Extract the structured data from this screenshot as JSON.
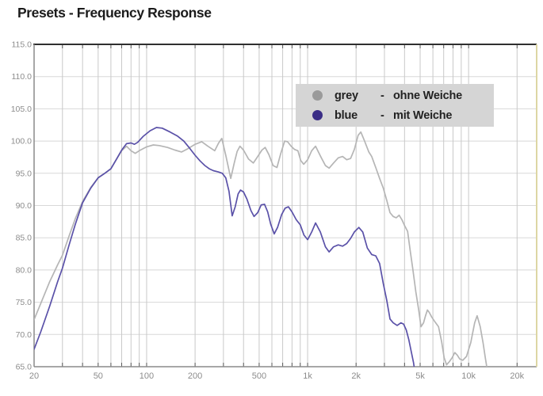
{
  "page": {
    "title": "Presets - Frequency Response"
  },
  "chart_data": {
    "type": "line",
    "title": "Presets - Frequency Response",
    "x_axis": {
      "scale": "log",
      "unit": "Hz",
      "range": [
        20,
        26800
      ],
      "labeled_ticks": [
        {
          "label": "20",
          "value": 20
        },
        {
          "label": "50",
          "value": 50
        },
        {
          "label": "100",
          "value": 100
        },
        {
          "label": "200",
          "value": 200
        },
        {
          "label": "500",
          "value": 500
        },
        {
          "label": "1k",
          "value": 1000
        },
        {
          "label": "2k",
          "value": 2000
        },
        {
          "label": "5k",
          "value": 5000
        },
        {
          "label": "10k",
          "value": 10000
        },
        {
          "label": "20k",
          "value": 20000
        }
      ],
      "minor_gridlines": [
        30,
        40,
        50,
        60,
        70,
        80,
        90,
        100,
        200,
        300,
        400,
        500,
        600,
        700,
        800,
        900,
        1000,
        2000,
        3000,
        4000,
        5000,
        6000,
        7000,
        8000,
        9000,
        10000,
        20000
      ]
    },
    "y_axis": {
      "unit": "dB",
      "range": [
        65,
        115
      ],
      "tick_step": 5,
      "ticks": [
        {
          "label": "115.0",
          "value": 115
        },
        {
          "label": "110.0",
          "value": 110
        },
        {
          "label": "105.0",
          "value": 105
        },
        {
          "label": "100.0",
          "value": 100
        },
        {
          "label": "95.0",
          "value": 95
        },
        {
          "label": "90.0",
          "value": 90
        },
        {
          "label": "85.0",
          "value": 85
        },
        {
          "label": "80.0",
          "value": 80
        },
        {
          "label": "75.0",
          "value": 75
        },
        {
          "label": "70.0",
          "value": 70
        },
        {
          "label": "65.0",
          "value": 65
        }
      ]
    },
    "grid": true,
    "legend": {
      "position": "top-right-inside",
      "background": "#d5d5d5",
      "entries": [
        {
          "color_name": "grey",
          "separator": "-",
          "description": "ohne Weiche",
          "color": "#9a9a9a"
        },
        {
          "color_name": "blue",
          "separator": "-",
          "description": "mit Weiche",
          "color": "#3a2d86"
        }
      ]
    },
    "series": [
      {
        "name": "ohne Weiche",
        "color_name": "grey",
        "color": "#b5b5b5",
        "points": [
          [
            20,
            72.3
          ],
          [
            22,
            74.8
          ],
          [
            25,
            78.2
          ],
          [
            28,
            80.8
          ],
          [
            30,
            82.3
          ],
          [
            33,
            85.3
          ],
          [
            36,
            87.9
          ],
          [
            40,
            90.6
          ],
          [
            45,
            92.8
          ],
          [
            50,
            94.3
          ],
          [
            55,
            95.0
          ],
          [
            60,
            95.7
          ],
          [
            65,
            97.2
          ],
          [
            70,
            98.5
          ],
          [
            75,
            99.2
          ],
          [
            80,
            98.5
          ],
          [
            85,
            98.1
          ],
          [
            90,
            98.5
          ],
          [
            100,
            99.1
          ],
          [
            110,
            99.4
          ],
          [
            120,
            99.3
          ],
          [
            135,
            99.0
          ],
          [
            150,
            98.6
          ],
          [
            165,
            98.3
          ],
          [
            180,
            98.8
          ],
          [
            200,
            99.5
          ],
          [
            220,
            99.9
          ],
          [
            240,
            99.2
          ],
          [
            265,
            98.5
          ],
          [
            280,
            99.7
          ],
          [
            293,
            100.4
          ],
          [
            310,
            97.8
          ],
          [
            333,
            94.2
          ],
          [
            350,
            96.6
          ],
          [
            365,
            98.4
          ],
          [
            380,
            99.2
          ],
          [
            400,
            98.6
          ],
          [
            430,
            97.2
          ],
          [
            460,
            96.6
          ],
          [
            490,
            97.6
          ],
          [
            520,
            98.6
          ],
          [
            545,
            99.0
          ],
          [
            575,
            97.9
          ],
          [
            610,
            96.2
          ],
          [
            645,
            95.9
          ],
          [
            680,
            98.0
          ],
          [
            720,
            100.0
          ],
          [
            750,
            99.9
          ],
          [
            790,
            99.2
          ],
          [
            830,
            98.7
          ],
          [
            870,
            98.5
          ],
          [
            905,
            97.0
          ],
          [
            945,
            96.4
          ],
          [
            1000,
            97.1
          ],
          [
            1060,
            98.5
          ],
          [
            1120,
            99.2
          ],
          [
            1200,
            97.7
          ],
          [
            1290,
            96.2
          ],
          [
            1360,
            95.8
          ],
          [
            1450,
            96.6
          ],
          [
            1550,
            97.4
          ],
          [
            1650,
            97.6
          ],
          [
            1750,
            97.1
          ],
          [
            1850,
            97.3
          ],
          [
            1950,
            98.7
          ],
          [
            2060,
            100.9
          ],
          [
            2140,
            101.4
          ],
          [
            2250,
            100.1
          ],
          [
            2400,
            98.3
          ],
          [
            2500,
            97.6
          ],
          [
            2650,
            95.9
          ],
          [
            2800,
            94.2
          ],
          [
            2950,
            92.7
          ],
          [
            3100,
            90.8
          ],
          [
            3250,
            88.9
          ],
          [
            3400,
            88.3
          ],
          [
            3550,
            88.1
          ],
          [
            3700,
            88.5
          ],
          [
            3850,
            87.8
          ],
          [
            4000,
            86.9
          ],
          [
            4180,
            86.0
          ],
          [
            4350,
            82.8
          ],
          [
            4500,
            80.2
          ],
          [
            4700,
            76.6
          ],
          [
            4900,
            73.8
          ],
          [
            5060,
            71.2
          ],
          [
            5250,
            71.8
          ],
          [
            5400,
            72.9
          ],
          [
            5550,
            73.8
          ],
          [
            5700,
            73.4
          ],
          [
            5900,
            72.7
          ],
          [
            6200,
            71.9
          ],
          [
            6500,
            71.2
          ],
          [
            6800,
            68.9
          ],
          [
            7050,
            66.4
          ],
          [
            7300,
            65.3
          ],
          [
            7600,
            65.8
          ],
          [
            7900,
            66.4
          ],
          [
            8200,
            67.2
          ],
          [
            8500,
            66.8
          ],
          [
            8800,
            66.2
          ],
          [
            9200,
            66.0
          ],
          [
            9700,
            66.6
          ],
          [
            10300,
            68.7
          ],
          [
            10900,
            71.8
          ],
          [
            11300,
            72.9
          ],
          [
            11800,
            71.2
          ],
          [
            12300,
            68.7
          ],
          [
            12700,
            66.4
          ],
          [
            13000,
            64.8
          ]
        ]
      },
      {
        "name": "mit Weiche",
        "color_name": "blue",
        "color": "#5a51a8",
        "points": [
          [
            20,
            67.7
          ],
          [
            22,
            70.4
          ],
          [
            25,
            74.4
          ],
          [
            28,
            78.2
          ],
          [
            30,
            80.3
          ],
          [
            33,
            83.9
          ],
          [
            36,
            87.0
          ],
          [
            40,
            90.4
          ],
          [
            45,
            92.7
          ],
          [
            50,
            94.3
          ],
          [
            55,
            95.0
          ],
          [
            60,
            95.7
          ],
          [
            65,
            97.2
          ],
          [
            70,
            98.6
          ],
          [
            75,
            99.6
          ],
          [
            80,
            99.7
          ],
          [
            84,
            99.5
          ],
          [
            88,
            99.8
          ],
          [
            95,
            100.7
          ],
          [
            105,
            101.6
          ],
          [
            115,
            102.1
          ],
          [
            125,
            102.0
          ],
          [
            140,
            101.4
          ],
          [
            155,
            100.8
          ],
          [
            170,
            100.0
          ],
          [
            185,
            98.9
          ],
          [
            200,
            97.8
          ],
          [
            215,
            96.9
          ],
          [
            230,
            96.2
          ],
          [
            245,
            95.7
          ],
          [
            260,
            95.4
          ],
          [
            280,
            95.2
          ],
          [
            295,
            95.0
          ],
          [
            310,
            94.3
          ],
          [
            325,
            92.2
          ],
          [
            340,
            88.4
          ],
          [
            355,
            89.8
          ],
          [
            370,
            91.8
          ],
          [
            383,
            92.4
          ],
          [
            400,
            92.1
          ],
          [
            420,
            91.0
          ],
          [
            445,
            89.2
          ],
          [
            465,
            88.3
          ],
          [
            490,
            88.9
          ],
          [
            515,
            90.1
          ],
          [
            540,
            90.2
          ],
          [
            565,
            89.0
          ],
          [
            590,
            87.1
          ],
          [
            620,
            85.6
          ],
          [
            650,
            86.6
          ],
          [
            690,
            88.6
          ],
          [
            725,
            89.6
          ],
          [
            760,
            89.8
          ],
          [
            800,
            89.0
          ],
          [
            850,
            87.8
          ],
          [
            900,
            87.0
          ],
          [
            950,
            85.4
          ],
          [
            1000,
            84.7
          ],
          [
            1060,
            85.9
          ],
          [
            1120,
            87.3
          ],
          [
            1200,
            85.9
          ],
          [
            1290,
            83.6
          ],
          [
            1360,
            82.8
          ],
          [
            1450,
            83.6
          ],
          [
            1550,
            83.9
          ],
          [
            1650,
            83.7
          ],
          [
            1750,
            84.1
          ],
          [
            1850,
            84.9
          ],
          [
            1950,
            85.9
          ],
          [
            2080,
            86.6
          ],
          [
            2200,
            85.9
          ],
          [
            2350,
            83.4
          ],
          [
            2500,
            82.4
          ],
          [
            2650,
            82.2
          ],
          [
            2800,
            81.0
          ],
          [
            2950,
            77.9
          ],
          [
            3100,
            75.3
          ],
          [
            3250,
            72.4
          ],
          [
            3400,
            71.8
          ],
          [
            3600,
            71.4
          ],
          [
            3800,
            71.8
          ],
          [
            3950,
            71.6
          ],
          [
            4100,
            70.7
          ],
          [
            4250,
            69.2
          ],
          [
            4400,
            67.4
          ],
          [
            4550,
            65.6
          ],
          [
            4650,
            64.0
          ]
        ]
      }
    ],
    "frame_colors": {
      "top_border": "#2f2f2f",
      "left_border": "#8a8a8a",
      "bottom_border": "#8a8a8a",
      "right_border": "#ddd6a4",
      "gridline_vertical": "#c9c9c9",
      "gridline_horizontal": "#d8d8d8",
      "tick_stub": "#5a5a5a",
      "tick_label": "#8c8c8c"
    }
  }
}
